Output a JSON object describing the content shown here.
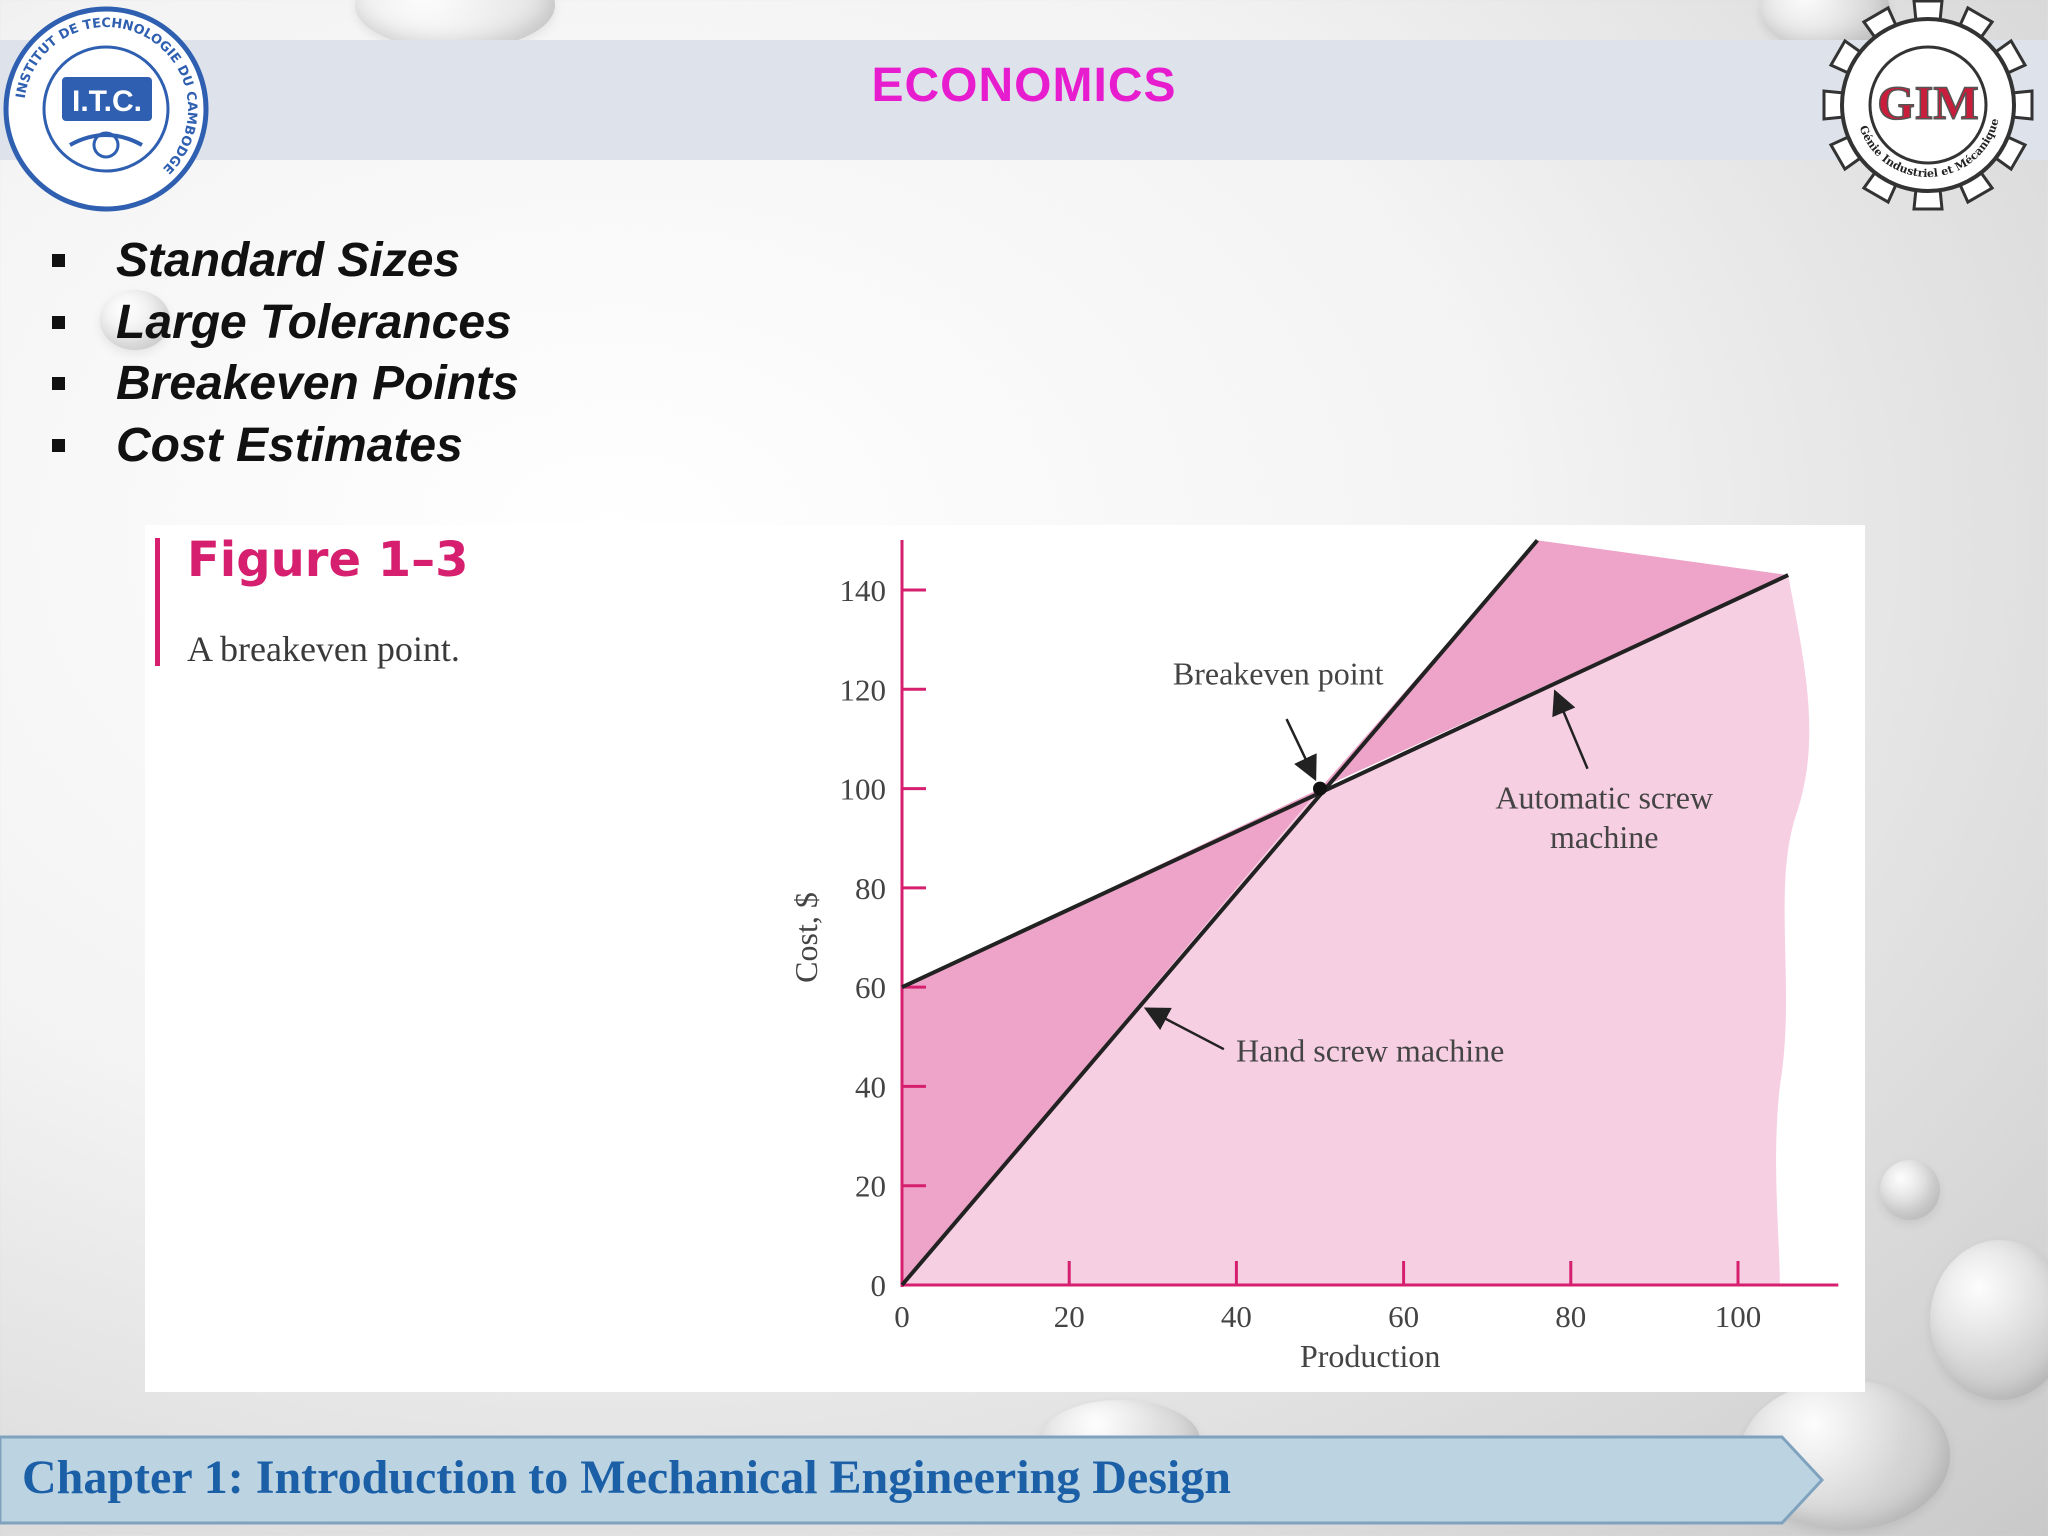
{
  "header": {
    "title": "ECONOMICS"
  },
  "logos": {
    "left": {
      "text": "I.T.C.",
      "ring_text": "INSTITUT DE TECHNOLOGIE DU CAMBODGE"
    },
    "right": {
      "text": "GIM",
      "ring_text": "Génie Industriel et Mécanique"
    }
  },
  "bullets": [
    {
      "label": "Standard Sizes"
    },
    {
      "label": "Large Tolerances"
    },
    {
      "label": "Breakeven Points"
    },
    {
      "label": "Cost Estimates"
    }
  ],
  "figure": {
    "label": "Figure 1–3",
    "caption": "A breakeven point."
  },
  "chart_data": {
    "type": "line",
    "xlabel": "Production",
    "ylabel": "Cost, $",
    "xlim": [
      0,
      100
    ],
    "ylim": [
      0,
      140
    ],
    "xticks": [
      0,
      20,
      40,
      60,
      80,
      100
    ],
    "yticks": [
      0,
      20,
      40,
      60,
      80,
      100,
      120,
      140
    ],
    "series": [
      {
        "name": "Automatic screw machine",
        "x": [
          0,
          106
        ],
        "y": [
          60,
          143
        ]
      },
      {
        "name": "Hand screw machine",
        "x": [
          0,
          76
        ],
        "y": [
          0,
          150
        ]
      }
    ],
    "annotations": [
      {
        "text": "Breakeven point",
        "x": 50,
        "y": 100
      },
      {
        "text": "Automatic screw",
        "text2": "machine"
      },
      {
        "text": "Hand screw machine"
      }
    ],
    "colors": {
      "axis": "#d6206f",
      "fill_light": "#f7cfe3",
      "fill_dark": "#eea4c9",
      "line": "#222222"
    }
  },
  "footer": {
    "text": "Chapter 1: Introduction to Mechanical Engineering Design"
  }
}
